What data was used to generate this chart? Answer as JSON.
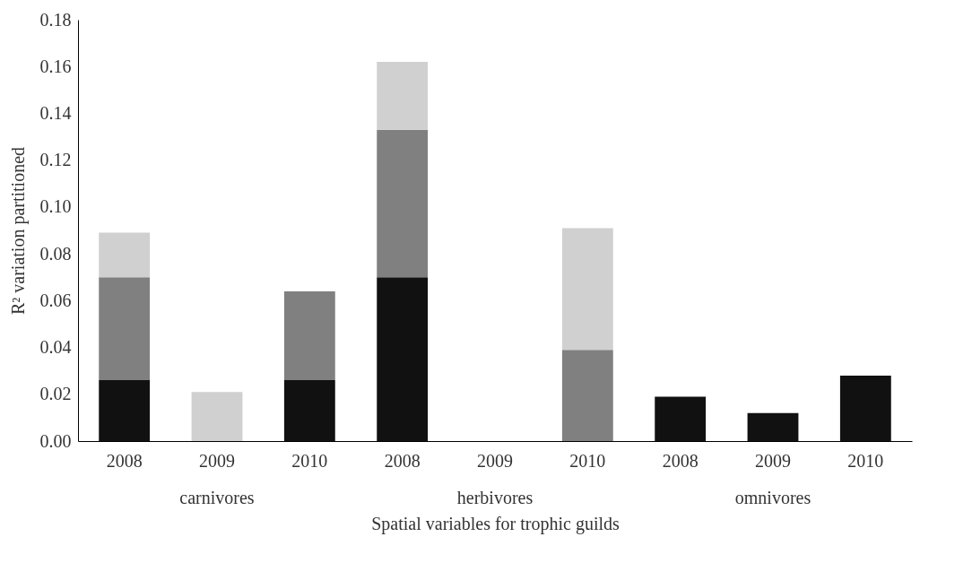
{
  "chart_data": {
    "type": "bar",
    "stacked": true,
    "xlabel": "Spatial variables for trophic guilds",
    "ylabel": "R² variation partitioned",
    "categories": [
      "2008",
      "2009",
      "2010",
      "2008",
      "2009",
      "2010",
      "2008",
      "2009",
      "2010"
    ],
    "series": [
      {
        "color": "#111111",
        "values": [
          0.026,
          0,
          0.026,
          0.07,
          0,
          0,
          0.019,
          0.012,
          0.028
        ]
      },
      {
        "color": "#808080",
        "values": [
          0.044,
          0,
          0.038,
          0.063,
          0,
          0.039,
          0,
          0,
          0
        ]
      },
      {
        "color": "#d0d0d0",
        "values": [
          0.019,
          0.021,
          0,
          0.029,
          0,
          0.052,
          0,
          0,
          0
        ]
      }
    ],
    "ylim": [
      0,
      0.18
    ],
    "yticks": [
      {
        "value": 0,
        "label": "0.00"
      },
      {
        "value": 0.02,
        "label": "0.02"
      },
      {
        "value": 0.04,
        "label": "0.04"
      },
      {
        "value": 0.06,
        "label": "0.06"
      },
      {
        "value": 0.08,
        "label": "0.08"
      },
      {
        "value": 0.1,
        "label": "0.10"
      },
      {
        "value": 0.12,
        "label": "0.12"
      },
      {
        "value": 0.14,
        "label": "0.14"
      },
      {
        "value": 0.16,
        "label": "0.16"
      },
      {
        "value": 0.18,
        "label": "0.18"
      }
    ],
    "annotations": [
      "carnivores",
      "herbivores",
      "omnivores"
    ],
    "grid": false,
    "legend": false
  }
}
